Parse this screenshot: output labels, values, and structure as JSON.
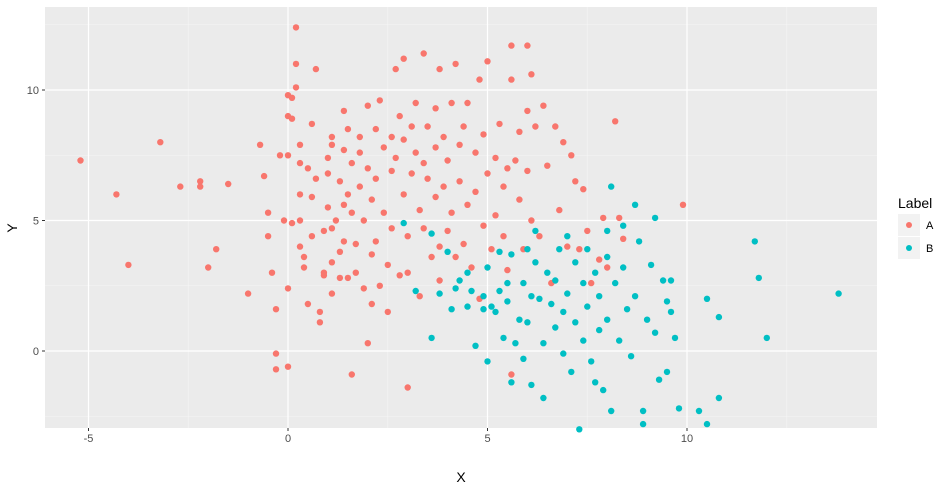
{
  "chart_data": {
    "type": "scatter",
    "title": "",
    "xlabel": "X",
    "ylabel": "Y",
    "xlim": [
      -6.1,
      14.8
    ],
    "ylim": [
      -3.0,
      13.0
    ],
    "x_ticks": [
      -5,
      0,
      5,
      10
    ],
    "y_ticks": [
      0,
      5,
      10
    ],
    "grid": true,
    "legend": {
      "title": "Label",
      "position": "right",
      "entries": [
        "A",
        "B"
      ]
    },
    "series": [
      {
        "name": "A",
        "color": "#F8766D",
        "points": [
          [
            -5.2,
            7.3
          ],
          [
            -4.3,
            6.0
          ],
          [
            -4.0,
            3.3
          ],
          [
            -3.2,
            8.0
          ],
          [
            -2.7,
            6.3
          ],
          [
            -2.2,
            6.5
          ],
          [
            -2.2,
            6.3
          ],
          [
            -2.0,
            3.2
          ],
          [
            -1.8,
            3.9
          ],
          [
            -1.5,
            6.4
          ],
          [
            -1.0,
            2.2
          ],
          [
            -0.7,
            7.9
          ],
          [
            -0.6,
            6.7
          ],
          [
            -0.5,
            5.3
          ],
          [
            -0.5,
            4.4
          ],
          [
            -0.4,
            3.0
          ],
          [
            -0.3,
            1.6
          ],
          [
            -0.3,
            -0.1
          ],
          [
            -0.3,
            -0.7
          ],
          [
            -0.2,
            7.5
          ],
          [
            -0.1,
            5.0
          ],
          [
            0.0,
            9.8
          ],
          [
            0.0,
            9.0
          ],
          [
            0.1,
            9.7
          ],
          [
            0.1,
            8.9
          ],
          [
            0.0,
            7.5
          ],
          [
            0.0,
            2.4
          ],
          [
            0.0,
            -0.6
          ],
          [
            0.1,
            4.9
          ],
          [
            0.2,
            12.4
          ],
          [
            0.2,
            11.0
          ],
          [
            0.2,
            10.1
          ],
          [
            0.3,
            7.9
          ],
          [
            0.3,
            7.2
          ],
          [
            0.3,
            6.0
          ],
          [
            0.3,
            5.0
          ],
          [
            0.3,
            4.0
          ],
          [
            0.4,
            3.6
          ],
          [
            0.4,
            3.2
          ],
          [
            0.5,
            1.8
          ],
          [
            0.5,
            7.0
          ],
          [
            0.6,
            8.7
          ],
          [
            0.6,
            5.9
          ],
          [
            0.6,
            4.4
          ],
          [
            0.7,
            10.8
          ],
          [
            0.7,
            6.6
          ],
          [
            0.8,
            1.5
          ],
          [
            0.8,
            1.1
          ],
          [
            0.9,
            2.9
          ],
          [
            0.9,
            4.6
          ],
          [
            0.9,
            3.0
          ],
          [
            1.0,
            5.5
          ],
          [
            1.0,
            7.4
          ],
          [
            1.0,
            6.8
          ],
          [
            1.1,
            7.9
          ],
          [
            1.1,
            8.2
          ],
          [
            1.1,
            4.7
          ],
          [
            1.1,
            3.4
          ],
          [
            1.1,
            2.2
          ],
          [
            1.2,
            5.0
          ],
          [
            1.3,
            6.5
          ],
          [
            1.3,
            3.8
          ],
          [
            1.3,
            2.8
          ],
          [
            1.4,
            9.2
          ],
          [
            1.4,
            7.7
          ],
          [
            1.4,
            5.6
          ],
          [
            1.4,
            4.2
          ],
          [
            1.5,
            8.5
          ],
          [
            1.5,
            6.0
          ],
          [
            1.5,
            2.8
          ],
          [
            1.6,
            -0.9
          ],
          [
            1.6,
            7.2
          ],
          [
            1.6,
            5.3
          ],
          [
            1.7,
            4.1
          ],
          [
            1.7,
            3.0
          ],
          [
            1.8,
            8.2
          ],
          [
            1.8,
            7.6
          ],
          [
            1.8,
            6.3
          ],
          [
            1.9,
            5.0
          ],
          [
            1.9,
            2.4
          ],
          [
            2.0,
            0.3
          ],
          [
            2.0,
            9.4
          ],
          [
            2.0,
            7.0
          ],
          [
            2.1,
            5.8
          ],
          [
            2.1,
            3.7
          ],
          [
            2.1,
            1.8
          ],
          [
            2.2,
            8.5
          ],
          [
            2.2,
            6.6
          ],
          [
            2.2,
            4.2
          ],
          [
            2.3,
            9.6
          ],
          [
            2.3,
            2.5
          ],
          [
            2.4,
            7.8
          ],
          [
            2.4,
            5.3
          ],
          [
            2.5,
            3.3
          ],
          [
            2.5,
            1.5
          ],
          [
            2.6,
            8.2
          ],
          [
            2.6,
            6.9
          ],
          [
            2.6,
            4.7
          ],
          [
            2.7,
            10.8
          ],
          [
            2.7,
            7.4
          ],
          [
            2.8,
            9.0
          ],
          [
            2.8,
            2.9
          ],
          [
            2.9,
            11.2
          ],
          [
            2.9,
            8.1
          ],
          [
            2.9,
            6.0
          ],
          [
            3.0,
            4.4
          ],
          [
            3.0,
            3.0
          ],
          [
            3.0,
            -1.4
          ],
          [
            3.1,
            8.6
          ],
          [
            3.1,
            6.8
          ],
          [
            3.2,
            7.6
          ],
          [
            3.2,
            9.5
          ],
          [
            3.3,
            5.4
          ],
          [
            3.3,
            2.1
          ],
          [
            3.4,
            11.4
          ],
          [
            3.4,
            7.2
          ],
          [
            3.4,
            4.7
          ],
          [
            3.5,
            8.6
          ],
          [
            3.5,
            6.6
          ],
          [
            3.6,
            3.6
          ],
          [
            3.7,
            9.3
          ],
          [
            3.7,
            7.8
          ],
          [
            3.7,
            5.9
          ],
          [
            3.8,
            10.8
          ],
          [
            3.8,
            4.0
          ],
          [
            3.8,
            2.7
          ],
          [
            3.9,
            8.2
          ],
          [
            3.9,
            6.3
          ],
          [
            4.0,
            4.6
          ],
          [
            4.0,
            7.3
          ],
          [
            4.1,
            9.5
          ],
          [
            4.1,
            5.3
          ],
          [
            4.2,
            11.0
          ],
          [
            4.2,
            3.6
          ],
          [
            4.3,
            7.9
          ],
          [
            4.3,
            6.5
          ],
          [
            4.4,
            8.6
          ],
          [
            4.4,
            4.1
          ],
          [
            4.5,
            9.5
          ],
          [
            4.5,
            5.6
          ],
          [
            4.6,
            3.2
          ],
          [
            4.7,
            7.6
          ],
          [
            4.7,
            6.1
          ],
          [
            4.8,
            10.4
          ],
          [
            4.8,
            2.0
          ],
          [
            4.9,
            8.3
          ],
          [
            4.9,
            4.8
          ],
          [
            5.0,
            11.1
          ],
          [
            5.0,
            6.8
          ],
          [
            5.1,
            3.9
          ],
          [
            5.2,
            7.4
          ],
          [
            5.2,
            5.2
          ],
          [
            5.3,
            8.7
          ],
          [
            5.4,
            6.3
          ],
          [
            5.4,
            4.4
          ],
          [
            5.5,
            7.0
          ],
          [
            5.5,
            3.1
          ],
          [
            5.6,
            -0.9
          ],
          [
            5.6,
            11.7
          ],
          [
            5.6,
            10.4
          ],
          [
            5.7,
            7.3
          ],
          [
            5.8,
            5.8
          ],
          [
            5.8,
            8.4
          ],
          [
            5.9,
            3.9
          ],
          [
            6.0,
            11.7
          ],
          [
            6.0,
            9.2
          ],
          [
            6.0,
            6.9
          ],
          [
            6.1,
            10.6
          ],
          [
            6.1,
            5.0
          ],
          [
            6.2,
            8.6
          ],
          [
            6.3,
            4.4
          ],
          [
            6.4,
            9.4
          ],
          [
            6.5,
            7.1
          ],
          [
            6.6,
            2.6
          ],
          [
            6.7,
            8.6
          ],
          [
            6.8,
            5.4
          ],
          [
            6.9,
            8.0
          ],
          [
            7.0,
            4.0
          ],
          [
            7.1,
            7.5
          ],
          [
            7.2,
            6.5
          ],
          [
            7.3,
            3.9
          ],
          [
            7.4,
            6.2
          ],
          [
            7.5,
            4.6
          ],
          [
            7.6,
            2.6
          ],
          [
            7.8,
            3.5
          ],
          [
            7.9,
            5.1
          ],
          [
            8.0,
            3.2
          ],
          [
            8.2,
            8.8
          ],
          [
            8.3,
            5.1
          ],
          [
            8.4,
            4.3
          ],
          [
            9.9,
            5.6
          ]
        ]
      },
      {
        "name": "B",
        "color": "#00BFC4",
        "points": [
          [
            2.9,
            4.9
          ],
          [
            3.2,
            2.3
          ],
          [
            3.6,
            4.5
          ],
          [
            3.6,
            0.5
          ],
          [
            3.8,
            2.2
          ],
          [
            4.0,
            3.8
          ],
          [
            4.1,
            1.6
          ],
          [
            4.2,
            2.4
          ],
          [
            4.3,
            2.7
          ],
          [
            4.5,
            3.0
          ],
          [
            4.5,
            1.7
          ],
          [
            4.6,
            2.3
          ],
          [
            4.7,
            0.2
          ],
          [
            4.9,
            1.6
          ],
          [
            4.9,
            2.1
          ],
          [
            5.0,
            3.2
          ],
          [
            5.0,
            -0.4
          ],
          [
            5.1,
            1.7
          ],
          [
            5.2,
            1.5
          ],
          [
            5.3,
            2.3
          ],
          [
            5.3,
            3.8
          ],
          [
            5.4,
            0.5
          ],
          [
            5.5,
            2.6
          ],
          [
            5.5,
            1.9
          ],
          [
            5.6,
            -1.2
          ],
          [
            5.6,
            3.7
          ],
          [
            5.7,
            0.3
          ],
          [
            5.8,
            1.2
          ],
          [
            5.9,
            2.6
          ],
          [
            5.9,
            -0.3
          ],
          [
            6.0,
            3.9
          ],
          [
            6.0,
            1.1
          ],
          [
            6.1,
            2.1
          ],
          [
            6.1,
            -1.3
          ],
          [
            6.2,
            4.6
          ],
          [
            6.2,
            3.4
          ],
          [
            6.3,
            2.0
          ],
          [
            6.4,
            0.3
          ],
          [
            6.4,
            -1.8
          ],
          [
            6.5,
            3.0
          ],
          [
            6.6,
            1.8
          ],
          [
            6.7,
            2.7
          ],
          [
            6.7,
            0.9
          ],
          [
            6.8,
            3.9
          ],
          [
            6.9,
            -0.1
          ],
          [
            6.9,
            1.5
          ],
          [
            7.0,
            4.4
          ],
          [
            7.0,
            2.2
          ],
          [
            7.1,
            -0.8
          ],
          [
            7.2,
            3.4
          ],
          [
            7.2,
            1.1
          ],
          [
            7.3,
            -3.0
          ],
          [
            7.4,
            2.6
          ],
          [
            7.4,
            0.4
          ],
          [
            7.5,
            3.9
          ],
          [
            7.5,
            1.7
          ],
          [
            7.6,
            -0.4
          ],
          [
            7.7,
            3.0
          ],
          [
            7.7,
            -1.2
          ],
          [
            7.8,
            2.1
          ],
          [
            7.8,
            0.8
          ],
          [
            7.9,
            -1.5
          ],
          [
            8.0,
            4.6
          ],
          [
            8.0,
            3.6
          ],
          [
            8.0,
            1.2
          ],
          [
            8.1,
            6.3
          ],
          [
            8.1,
            -2.3
          ],
          [
            8.2,
            2.6
          ],
          [
            8.3,
            0.4
          ],
          [
            8.4,
            3.2
          ],
          [
            8.4,
            4.8
          ],
          [
            8.5,
            1.6
          ],
          [
            8.6,
            -0.2
          ],
          [
            8.7,
            5.6
          ],
          [
            8.7,
            2.1
          ],
          [
            8.8,
            4.2
          ],
          [
            8.9,
            -2.3
          ],
          [
            8.9,
            -2.8
          ],
          [
            9.0,
            1.2
          ],
          [
            9.1,
            3.3
          ],
          [
            9.2,
            0.7
          ],
          [
            9.2,
            5.1
          ],
          [
            9.3,
            -1.1
          ],
          [
            9.4,
            2.7
          ],
          [
            9.5,
            1.9
          ],
          [
            9.5,
            -0.8
          ],
          [
            9.6,
            1.5
          ],
          [
            9.6,
            2.7
          ],
          [
            9.7,
            0.5
          ],
          [
            9.8,
            -2.2
          ],
          [
            10.3,
            -2.3
          ],
          [
            10.5,
            2.0
          ],
          [
            10.5,
            -2.8
          ],
          [
            10.8,
            1.3
          ],
          [
            10.8,
            -1.8
          ],
          [
            11.7,
            4.2
          ],
          [
            11.8,
            2.8
          ],
          [
            12.0,
            0.5
          ],
          [
            13.8,
            2.2
          ]
        ]
      }
    ]
  }
}
